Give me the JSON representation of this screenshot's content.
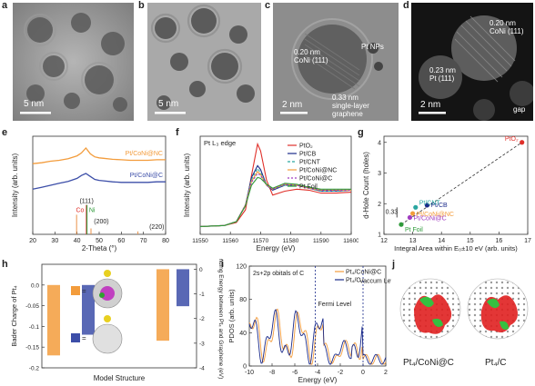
{
  "panels": {
    "a": {
      "letter": "a",
      "scale": "5 nm"
    },
    "b": {
      "letter": "b",
      "scale": "5 nm"
    },
    "c": {
      "letter": "c",
      "scale": "2 nm",
      "ann1": "0.20 nm",
      "ann2": "CoNi (111)",
      "ann3": "Pt NPs",
      "ann4": "0.33 nm",
      "ann5": "single-layer",
      "ann6": "graphene"
    },
    "d": {
      "letter": "d",
      "scale": "2 nm",
      "ann1": "0.20 nm",
      "ann2": "CoNi (111)",
      "ann3": "0.23 nm",
      "ann4": "Pt (111)",
      "ann5": "gap"
    },
    "e": {
      "letter": "e"
    },
    "f": {
      "letter": "f"
    },
    "g": {
      "letter": "g"
    },
    "h": {
      "letter": "h"
    },
    "i": {
      "letter": "i"
    },
    "j": {
      "letter": "j",
      "label1": "Pt₄/CoNi@C",
      "label2": "Pt₄/C"
    }
  },
  "colors": {
    "orange": "#f39c3c",
    "blue": "#3c4ea8",
    "red": "#e0302a",
    "green": "#2e9a3a",
    "purple": "#a03cc0",
    "navy": "#1a2a8a",
    "teal": "#2aa6a0"
  },
  "chart_data": [
    {
      "id": "e",
      "type": "line",
      "xlabel": "2-Theta (°)",
      "ylabel": "Intensity (arb. units)",
      "xlim": [
        20,
        80
      ],
      "xticks": [
        20,
        30,
        40,
        50,
        60,
        70,
        80
      ],
      "series": [
        {
          "name": "Pt/CoNi@NC",
          "color": "#f39c3c",
          "x": [
            20,
            24,
            28,
            32,
            36,
            40,
            42,
            44,
            46,
            48,
            50,
            52,
            56,
            60,
            64,
            68,
            72,
            76,
            80
          ],
          "y": [
            0.72,
            0.73,
            0.745,
            0.755,
            0.77,
            0.8,
            0.83,
            0.88,
            0.82,
            0.79,
            0.78,
            0.775,
            0.765,
            0.76,
            0.755,
            0.755,
            0.755,
            0.76,
            0.76
          ]
        },
        {
          "name": "Pt/CoNi@C",
          "color": "#3c4ea8",
          "x": [
            20,
            24,
            28,
            32,
            36,
            40,
            42,
            44,
            46,
            48,
            50,
            52,
            56,
            60,
            64,
            68,
            72,
            76,
            80
          ],
          "y": [
            0.46,
            0.48,
            0.5,
            0.52,
            0.54,
            0.57,
            0.6,
            0.62,
            0.59,
            0.56,
            0.55,
            0.545,
            0.535,
            0.53,
            0.53,
            0.53,
            0.53,
            0.535,
            0.535
          ]
        }
      ],
      "refs": [
        {
          "label": "Co",
          "color": "#e0302a",
          "x": 44.2,
          "h": 0.3
        },
        {
          "label": "Ni",
          "color": "#2e9a3a",
          "x": 44.5,
          "h": 0.3
        },
        {
          "label": "(111)",
          "x": 39.8,
          "h": 0.2
        },
        {
          "label": "(200)",
          "x": 46.3,
          "h": 0.06
        },
        {
          "label": "(220)",
          "x": 67.5,
          "h": 0.03
        }
      ],
      "ref_label_111": "(111)",
      "ref_label_200": "(200)",
      "ref_label_220": "(220)"
    },
    {
      "id": "f",
      "type": "line",
      "title": "Pt L₃ edge",
      "xlabel": "Energy (eV)",
      "ylabel": "Intensity (arb. units)",
      "xlim": [
        11550,
        11600
      ],
      "xticks": [
        11550,
        11560,
        11570,
        11580,
        11590,
        11600
      ],
      "series": [
        {
          "name": "PtO₂",
          "color": "#e0302a",
          "dash": "",
          "x": [
            11550,
            11558,
            11562,
            11565,
            11567,
            11569,
            11570,
            11572,
            11574,
            11578,
            11582,
            11586,
            11590,
            11595,
            11600
          ],
          "y": [
            0.08,
            0.09,
            0.12,
            0.25,
            0.6,
            0.92,
            0.85,
            0.55,
            0.4,
            0.44,
            0.46,
            0.45,
            0.42,
            0.42,
            0.43
          ]
        },
        {
          "name": "Pt/CB",
          "color": "#1a2a8a",
          "dash": "",
          "x": [
            11550,
            11558,
            11562,
            11565,
            11567,
            11569,
            11570,
            11572,
            11574,
            11578,
            11582,
            11586,
            11590,
            11595,
            11600
          ],
          "y": [
            0.08,
            0.09,
            0.13,
            0.3,
            0.58,
            0.7,
            0.66,
            0.5,
            0.45,
            0.5,
            0.5,
            0.47,
            0.44,
            0.44,
            0.45
          ]
        },
        {
          "name": "Pt/CNT",
          "color": "#2aa6a0",
          "dash": "3,2",
          "x": [
            11550,
            11558,
            11562,
            11565,
            11567,
            11569,
            11570,
            11572,
            11574,
            11578,
            11582,
            11586,
            11590,
            11595,
            11600
          ],
          "y": [
            0.08,
            0.09,
            0.13,
            0.3,
            0.56,
            0.67,
            0.63,
            0.5,
            0.46,
            0.5,
            0.5,
            0.47,
            0.44,
            0.44,
            0.45
          ]
        },
        {
          "name": "Pt/CoNi@NC",
          "color": "#f39c3c",
          "dash": "",
          "x": [
            11550,
            11558,
            11562,
            11565,
            11567,
            11569,
            11570,
            11572,
            11574,
            11578,
            11582,
            11586,
            11590,
            11595,
            11600
          ],
          "y": [
            0.08,
            0.09,
            0.13,
            0.3,
            0.54,
            0.64,
            0.61,
            0.5,
            0.46,
            0.51,
            0.5,
            0.47,
            0.45,
            0.45,
            0.45
          ]
        },
        {
          "name": "Pt/CoNi@C",
          "color": "#a03cc0",
          "dash": "2,2",
          "x": [
            11550,
            11558,
            11562,
            11565,
            11567,
            11569,
            11570,
            11572,
            11574,
            11578,
            11582,
            11586,
            11590,
            11595,
            11600
          ],
          "y": [
            0.08,
            0.09,
            0.13,
            0.3,
            0.53,
            0.62,
            0.6,
            0.5,
            0.46,
            0.51,
            0.5,
            0.47,
            0.45,
            0.45,
            0.45
          ]
        },
        {
          "name": "Pt Foil",
          "color": "#2e9a3a",
          "dash": "",
          "x": [
            11550,
            11558,
            11562,
            11565,
            11567,
            11569,
            11570,
            11572,
            11574,
            11578,
            11582,
            11586,
            11590,
            11595,
            11600
          ],
          "y": [
            0.08,
            0.09,
            0.13,
            0.29,
            0.5,
            0.58,
            0.57,
            0.51,
            0.47,
            0.52,
            0.51,
            0.48,
            0.46,
            0.46,
            0.46
          ]
        }
      ]
    },
    {
      "id": "g",
      "type": "scatter",
      "xlabel": "Integral Area within E₀±10 eV (arb. units)",
      "ylabel": "d-Hole Count (holes)",
      "xlim": [
        12,
        17
      ],
      "ylim": [
        1,
        4.2
      ],
      "xticks": [
        12,
        13,
        14,
        15,
        16,
        17
      ],
      "yticks": [
        1,
        2,
        3,
        4
      ],
      "points": [
        {
          "name": "PtO₂",
          "x": 16.8,
          "y": 4.0,
          "color": "#e0302a"
        },
        {
          "name": "Pt/CB",
          "x": 13.5,
          "y": 1.95,
          "color": "#1a2a8a"
        },
        {
          "name": "Pt/CNT",
          "x": 13.1,
          "y": 1.88,
          "color": "#2aa6a0"
        },
        {
          "name": "Pt/CoNi@NC",
          "x": 13.0,
          "y": 1.68,
          "color": "#f39c3c"
        },
        {
          "name": "Pt/CoNi@C",
          "x": 12.9,
          "y": 1.55,
          "color": "#a03cc0"
        },
        {
          "name": "Pt Foil",
          "x": 12.6,
          "y": 1.32,
          "color": "#2e9a3a"
        }
      ],
      "annotation": "0.33"
    },
    {
      "id": "h",
      "type": "bar",
      "xlabel": "Model Structure",
      "ylabel": "Bader Charge of Pt₄",
      "ylabel2": "Binding Energy between Pt₄ and Graphene (eV)",
      "ylim": [
        -0.2,
        0.05
      ],
      "yticks": [
        0.0,
        -0.05,
        -0.1,
        -0.15,
        -0.2
      ],
      "ylim2": [
        -4,
        0
      ],
      "yticks2": [
        0,
        -1,
        -2,
        -3,
        -4
      ],
      "bader": [
        {
          "name": "Pt₄/CoNi@C",
          "value": -0.17,
          "color": "#f39c3c"
        },
        {
          "name": "Pt₄/C",
          "value": -0.12,
          "color": "#3c4ea8"
        }
      ],
      "binding": [
        {
          "name": "Pt₄/CoNi@C",
          "value": -2.9,
          "color": "#f39c3c"
        },
        {
          "name": "Pt₄/C",
          "value": -1.5,
          "color": "#3c4ea8"
        }
      ]
    },
    {
      "id": "i",
      "type": "line",
      "title": "2s+2p obitals of C",
      "xlabel": "Energy (eV)",
      "ylabel": "PDOS (arb. units)",
      "xlim": [
        -10,
        2
      ],
      "ylim": [
        0,
        120
      ],
      "xticks": [
        -10,
        -8,
        -6,
        -4,
        -2,
        0,
        2
      ],
      "yticks": [
        0,
        40,
        80,
        120
      ],
      "fermi_label": "Fermi Level",
      "vacuum_label": "Vaccum Level",
      "fermi_x": -4.2,
      "vacuum_x": 0.0,
      "series": [
        {
          "name": "Pt₄/CoNi@C",
          "color": "#f39c3c"
        },
        {
          "name": "Pt₄/C",
          "color": "#1a2a8a"
        }
      ]
    }
  ]
}
